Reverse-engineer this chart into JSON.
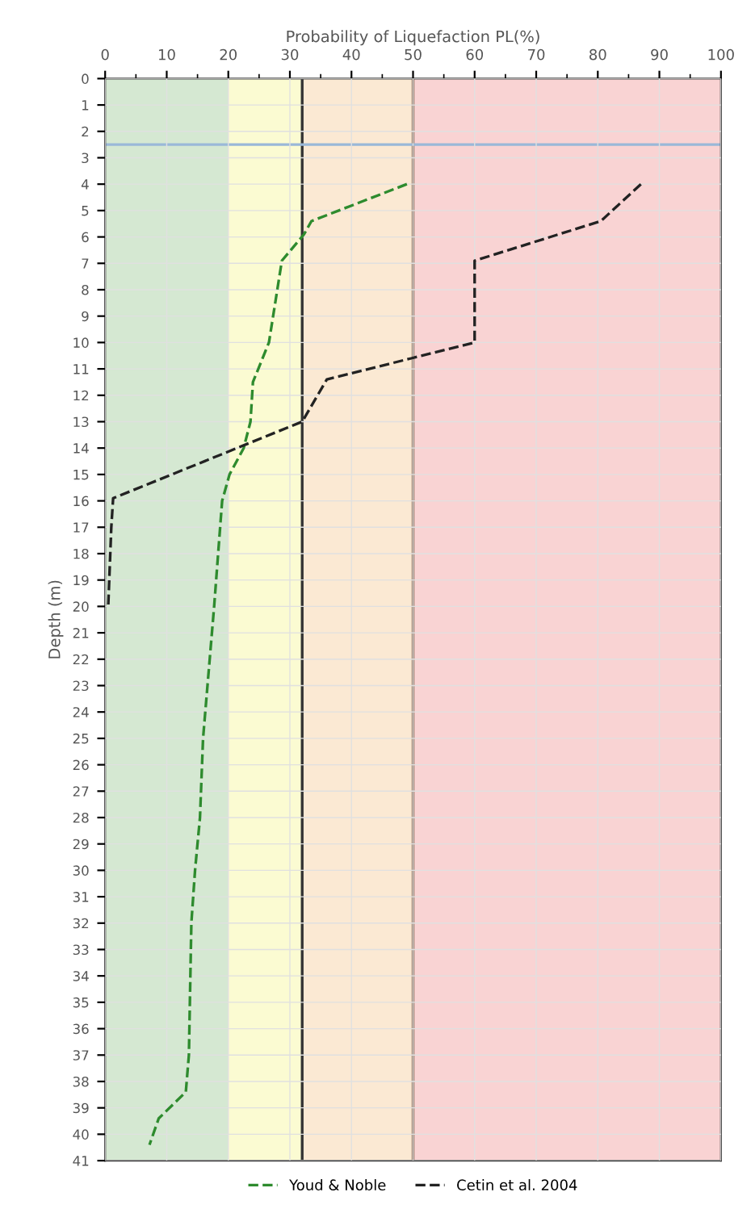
{
  "chart_data": {
    "type": "line",
    "xlabel": "Probability of Liquefaction PL(%)",
    "ylabel": "Depth (m)",
    "xlim": [
      0,
      100
    ],
    "xticks": [
      0,
      10,
      20,
      30,
      40,
      50,
      60,
      70,
      80,
      90,
      100
    ],
    "ylim": [
      41,
      0
    ],
    "yticks": [
      0,
      1,
      2,
      3,
      4,
      5,
      6,
      7,
      8,
      9,
      10,
      11,
      12,
      13,
      14,
      15,
      16,
      17,
      18,
      19,
      20,
      21,
      22,
      23,
      24,
      25,
      26,
      27,
      28,
      29,
      30,
      31,
      32,
      33,
      34,
      35,
      36,
      37,
      38,
      39,
      40,
      41
    ],
    "grid": true,
    "legend": "bottom",
    "line_style": "dashed",
    "bands": [
      {
        "axis": "x",
        "from": 0,
        "to": 20,
        "color": "#d5e8d2"
      },
      {
        "axis": "x",
        "from": 20,
        "to": 32,
        "color": "#fbfbd2"
      },
      {
        "axis": "x",
        "from": 32,
        "to": 50,
        "color": "#fbe9d3"
      },
      {
        "axis": "x",
        "from": 50,
        "to": 100,
        "color": "#f9d3d3"
      }
    ],
    "ref_lines": [
      {
        "axis": "x",
        "value": 32,
        "color": "#333333",
        "line_style": "solid"
      },
      {
        "axis": "x",
        "value": 50,
        "color": "#8a6a55",
        "line_style": "solid"
      },
      {
        "axis": "y",
        "value": 2.5,
        "color": "#9ab8d8",
        "line_style": "solid"
      }
    ],
    "series": [
      {
        "name": "Youd & Noble",
        "color": "#2e8b2e",
        "x": [
          49,
          33.5,
          32.3,
          28.7,
          26.6,
          24,
          23.6,
          22.5,
          20.2,
          19,
          17.7,
          15.9,
          15.4,
          14.6,
          14,
          13.6,
          13.1,
          8.7,
          7.2
        ],
        "values": [
          4,
          5.4,
          5.9,
          6.9,
          10,
          11.5,
          13,
          14,
          15,
          16,
          20,
          25,
          28,
          30,
          32,
          37,
          38.4,
          39.4,
          40.4
        ]
      },
      {
        "name": "Cetin et al. 2004",
        "color": "#222222",
        "x": [
          87,
          80.5,
          60,
          60,
          49.7,
          36,
          32,
          1.3,
          1,
          0.5
        ],
        "values": [
          4,
          5.4,
          6.9,
          10,
          10.6,
          11.4,
          13,
          15.9,
          17,
          20
        ]
      }
    ]
  }
}
